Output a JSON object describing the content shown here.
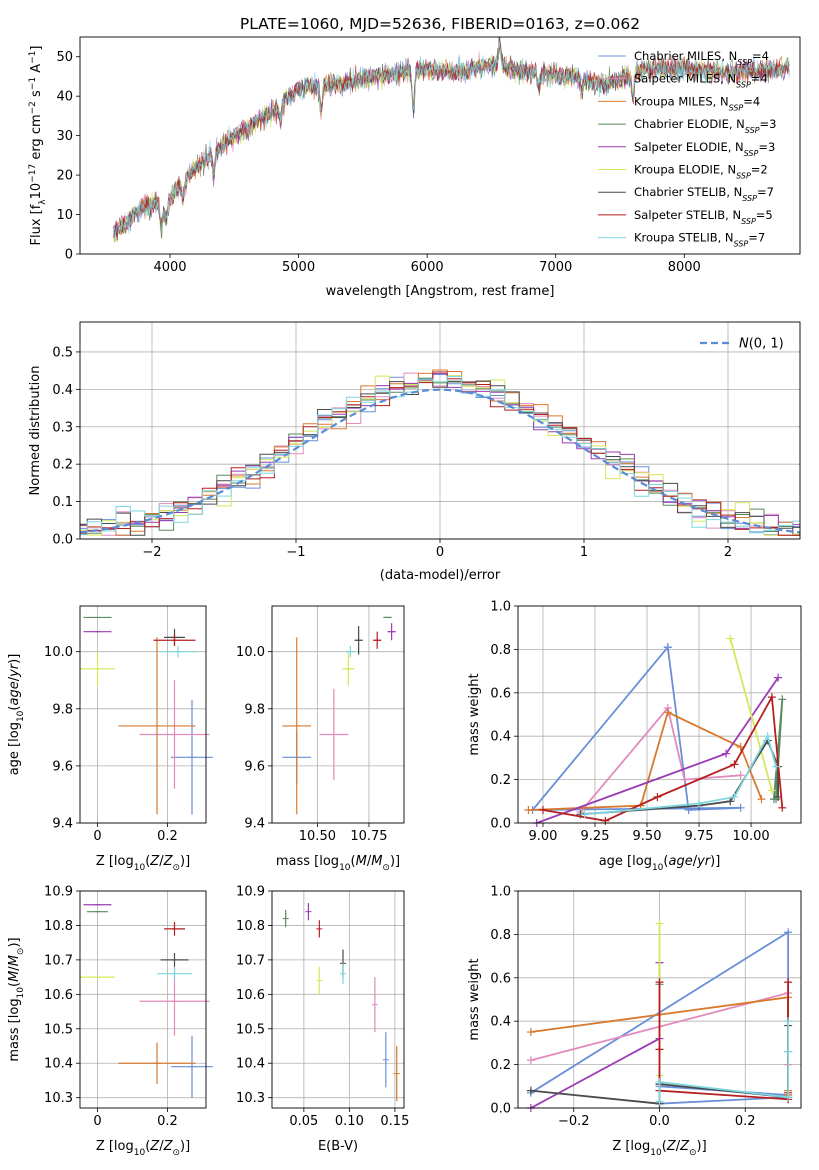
{
  "figure": {
    "title": "PLATE=1060, MJD=52636, FIBERID=0163, z=0.062"
  },
  "palette": {
    "series": [
      "#6a8fd8",
      "#e28bbd",
      "#d9792e",
      "#5a8a5e",
      "#9a3bb5",
      "#d4e85a",
      "#4a4a4a",
      "#b51f1f",
      "#7fd6e0"
    ]
  },
  "chart_data": [
    {
      "id": "spectrum",
      "type": "line",
      "xlabel": "wavelength [Angstrom, rest frame]",
      "ylabel": "Flux [f_λ10^-17 erg cm^-2 s^-1 A^-1]",
      "xlim": [
        3300,
        8900
      ],
      "ylim": [
        0,
        55
      ],
      "xticks": [
        4000,
        5000,
        6000,
        7000,
        8000
      ],
      "yticks": [
        0,
        10,
        20,
        30,
        40,
        50
      ],
      "grid": false,
      "legend": "top-right",
      "data_envelope": {
        "x": [
          3550,
          3800,
          4000,
          4200,
          4500,
          4800,
          5000,
          5300,
          5600,
          5900,
          6200,
          6500,
          6800,
          7100,
          7400,
          7700,
          8000,
          8300,
          8800
        ],
        "y": [
          5,
          12,
          14,
          22,
          30,
          36,
          42,
          43,
          45,
          47,
          46,
          48,
          46,
          45,
          43,
          47,
          47,
          46,
          47
        ]
      },
      "series": [
        {
          "name": "Chabrier MILES, N_SSP=4"
        },
        {
          "name": "Salpeter MILES, N_SSP=4"
        },
        {
          "name": "Kroupa MILES, N_SSP=4"
        },
        {
          "name": "Chabrier ELODIE, N_SSP=3"
        },
        {
          "name": "Salpeter ELODIE, N_SSP=3"
        },
        {
          "name": "Kroupa ELODIE, N_SSP=2"
        },
        {
          "name": "Chabrier STELIB, N_SSP=7"
        },
        {
          "name": "Salpeter STELIB, N_SSP=5"
        },
        {
          "name": "Kroupa STELIB, N_SSP=7"
        }
      ]
    },
    {
      "id": "residuals",
      "type": "histogram",
      "xlabel": "(data-model)/error",
      "ylabel": "Normed distribution",
      "xlim": [
        -2.5,
        2.5
      ],
      "ylim": [
        0,
        0.58
      ],
      "xticks": [
        -2,
        -1,
        0,
        1,
        2
      ],
      "yticks": [
        0.0,
        0.1,
        0.2,
        0.3,
        0.4,
        0.5
      ],
      "grid": true,
      "legend": "top-right",
      "reference": {
        "name": "N(0,1)",
        "mean": 0,
        "sigma": 1
      },
      "bin_width": 0.1
    },
    {
      "id": "age_vs_Z",
      "type": "errorbar",
      "xlabel": "Z [log10(Z/Z_sun)]",
      "ylabel": "age  [log10(age/yr)]",
      "xlim": [
        -0.05,
        0.31
      ],
      "ylim": [
        9.4,
        10.16
      ],
      "xticks": [
        0.0,
        0.2
      ],
      "yticks": [
        9.4,
        9.6,
        9.8,
        10.0
      ],
      "grid": true,
      "points": [
        {
          "series": 0,
          "x": 0.27,
          "y": 9.63,
          "xerr": 0.06,
          "yerr": 0.2
        },
        {
          "series": 1,
          "x": 0.22,
          "y": 9.71,
          "xerr": 0.1,
          "yerr": 0.19
        },
        {
          "series": 2,
          "x": 0.17,
          "y": 9.74,
          "xerr": 0.11,
          "yerr": 0.31
        },
        {
          "series": 3,
          "x": 0.0,
          "y": 10.12,
          "xerr": 0.04,
          "yerr": 0.0
        },
        {
          "series": 4,
          "x": 0.0,
          "y": 10.07,
          "xerr": 0.04,
          "yerr": 0.0
        },
        {
          "series": 5,
          "x": 0.0,
          "y": 9.94,
          "xerr": 0.05,
          "yerr": 0.06
        },
        {
          "series": 6,
          "x": 0.22,
          "y": 10.05,
          "xerr": 0.03,
          "yerr": 0.03
        },
        {
          "series": 7,
          "x": 0.22,
          "y": 10.04,
          "xerr": 0.06,
          "yerr": 0.02
        },
        {
          "series": 8,
          "x": 0.23,
          "y": 10.0,
          "xerr": 0.05,
          "yerr": 0.02
        }
      ]
    },
    {
      "id": "age_vs_mass",
      "type": "errorbar",
      "xlabel": "mass [log10(M/M_sun)]",
      "ylabel": "",
      "xlim": [
        10.28,
        10.92
      ],
      "ylim": [
        9.4,
        10.16
      ],
      "xticks": [
        10.5,
        10.75
      ],
      "xticklabels": [
        "10.50",
        "10.75"
      ],
      "yticks": [
        9.4,
        9.6,
        9.8,
        10.0
      ],
      "grid": true,
      "points": [
        {
          "series": 0,
          "x": 10.4,
          "y": 9.63,
          "xerr": 0.07,
          "yerr": 0.09
        },
        {
          "series": 1,
          "x": 10.58,
          "y": 9.71,
          "xerr": 0.07,
          "yerr": 0.16
        },
        {
          "series": 2,
          "x": 10.4,
          "y": 9.74,
          "xerr": 0.07,
          "yerr": 0.31
        },
        {
          "series": 3,
          "x": 10.84,
          "y": 10.12,
          "xerr": 0.02,
          "yerr": 0.0
        },
        {
          "series": 4,
          "x": 10.86,
          "y": 10.07,
          "xerr": 0.02,
          "yerr": 0.03
        },
        {
          "series": 5,
          "x": 10.65,
          "y": 9.94,
          "xerr": 0.03,
          "yerr": 0.06
        },
        {
          "series": 6,
          "x": 10.7,
          "y": 10.04,
          "xerr": 0.02,
          "yerr": 0.05
        },
        {
          "series": 7,
          "x": 10.79,
          "y": 10.04,
          "xerr": 0.02,
          "yerr": 0.03
        },
        {
          "series": 8,
          "x": 10.66,
          "y": 10.0,
          "xerr": 0.02,
          "yerr": 0.02
        }
      ]
    },
    {
      "id": "weight_vs_age",
      "type": "line",
      "xlabel": "age  [log10(age/yr)]",
      "ylabel": "mass weight",
      "xlim": [
        8.88,
        10.24
      ],
      "ylim": [
        0,
        1.0
      ],
      "xticks": [
        9.0,
        9.25,
        9.5,
        9.75,
        10.0
      ],
      "xticklabels": [
        "9.00",
        "9.25",
        "9.50",
        "9.75",
        "10.00"
      ],
      "yticks": [
        0.0,
        0.2,
        0.4,
        0.6,
        0.8,
        1.0
      ],
      "grid": true,
      "series": [
        {
          "x": [
            9.6,
            9.7,
            9.95,
            8.95,
            9.6
          ],
          "y": [
            0.81,
            0.06,
            0.07,
            0.06,
            0.81
          ]
        },
        {
          "x": [
            9.18,
            9.6,
            9.68,
            9.95
          ],
          "y": [
            0.05,
            0.53,
            0.2,
            0.22
          ]
        },
        {
          "x": [
            8.93,
            9.47,
            9.6,
            9.95,
            10.05
          ],
          "y": [
            0.06,
            0.08,
            0.51,
            0.35,
            0.11
          ]
        },
        {
          "x": [
            10.11,
            10.15,
            10.12
          ],
          "y": [
            0.11,
            0.57,
            0.11
          ]
        },
        {
          "x": [
            8.97,
            9.88,
            10.13
          ],
          "y": [
            0.0,
            0.32,
            0.67
          ]
        },
        {
          "x": [
            9.9,
            10.1
          ],
          "y": [
            0.85,
            0.15
          ]
        },
        {
          "x": [
            9.18,
            9.75,
            9.9,
            10.08,
            10.13,
            10.13
          ],
          "y": [
            0.04,
            0.08,
            0.1,
            0.38,
            0.26,
            0.12
          ]
        },
        {
          "x": [
            9.0,
            9.3,
            9.55,
            9.92,
            10.1,
            10.15
          ],
          "y": [
            0.06,
            0.01,
            0.12,
            0.27,
            0.58,
            0.07
          ]
        },
        {
          "x": [
            9.2,
            9.75,
            9.92,
            10.08,
            10.12
          ],
          "y": [
            0.04,
            0.09,
            0.12,
            0.4,
            0.26
          ]
        }
      ]
    },
    {
      "id": "mass_vs_Z",
      "type": "errorbar",
      "xlabel": "Z [log10(Z/Z_sun)]",
      "ylabel": "mass [log10(M/M_sun)]",
      "xlim": [
        -0.05,
        0.31
      ],
      "ylim": [
        10.27,
        10.9
      ],
      "xticks": [
        0.0,
        0.2
      ],
      "yticks": [
        10.3,
        10.4,
        10.5,
        10.6,
        10.7,
        10.8,
        10.9
      ],
      "grid": true,
      "points": [
        {
          "series": 0,
          "x": 0.27,
          "y": 10.39,
          "xerr": 0.06,
          "yerr": 0.09
        },
        {
          "series": 1,
          "x": 0.22,
          "y": 10.58,
          "xerr": 0.1,
          "yerr": 0.1
        },
        {
          "series": 2,
          "x": 0.17,
          "y": 10.4,
          "xerr": 0.11,
          "yerr": 0.06
        },
        {
          "series": 3,
          "x": 0.0,
          "y": 10.84,
          "xerr": 0.03,
          "yerr": 0.0
        },
        {
          "series": 4,
          "x": 0.0,
          "y": 10.86,
          "xerr": 0.04,
          "yerr": 0.0
        },
        {
          "series": 5,
          "x": 0.0,
          "y": 10.65,
          "xerr": 0.05,
          "yerr": 0.0
        },
        {
          "series": 6,
          "x": 0.22,
          "y": 10.7,
          "xerr": 0.04,
          "yerr": 0.02
        },
        {
          "series": 7,
          "x": 0.22,
          "y": 10.79,
          "xerr": 0.03,
          "yerr": 0.02
        },
        {
          "series": 8,
          "x": 0.22,
          "y": 10.66,
          "xerr": 0.05,
          "yerr": 0.02
        }
      ]
    },
    {
      "id": "mass_vs_EBV",
      "type": "errorbar",
      "xlabel": "E(B-V)",
      "ylabel": "",
      "xlim": [
        0.015,
        0.16
      ],
      "ylim": [
        10.27,
        10.9
      ],
      "xticks": [
        0.05,
        0.1,
        0.15
      ],
      "xticklabels": [
        "0.05",
        "0.10",
        "0.15"
      ],
      "yticks": [
        10.3,
        10.4,
        10.5,
        10.6,
        10.7,
        10.8,
        10.9
      ],
      "grid": true,
      "points": [
        {
          "series": 0,
          "x": 0.14,
          "y": 10.41,
          "xerr": 0,
          "yerr": 0.08
        },
        {
          "series": 1,
          "x": 0.128,
          "y": 10.57,
          "xerr": 0,
          "yerr": 0.08
        },
        {
          "series": 2,
          "x": 0.152,
          "y": 10.37,
          "xerr": 0,
          "yerr": 0.08
        },
        {
          "series": 3,
          "x": 0.03,
          "y": 10.82,
          "xerr": 0,
          "yerr": 0.025
        },
        {
          "series": 4,
          "x": 0.055,
          "y": 10.84,
          "xerr": 0,
          "yerr": 0.025
        },
        {
          "series": 5,
          "x": 0.067,
          "y": 10.64,
          "xerr": 0,
          "yerr": 0.04
        },
        {
          "series": 6,
          "x": 0.093,
          "y": 10.69,
          "xerr": 0,
          "yerr": 0.04
        },
        {
          "series": 7,
          "x": 0.067,
          "y": 10.79,
          "xerr": 0,
          "yerr": 0.025
        },
        {
          "series": 8,
          "x": 0.093,
          "y": 10.66,
          "xerr": 0,
          "yerr": 0.03
        }
      ]
    },
    {
      "id": "weight_vs_Z",
      "type": "line",
      "xlabel": "Z [log10(Z/Z_sun)]",
      "ylabel": "mass weight",
      "xlim": [
        -0.33,
        0.33
      ],
      "ylim": [
        0,
        1.0
      ],
      "xticks": [
        -0.2,
        0.0,
        0.2
      ],
      "xticklabels": [
        "−0.2",
        "0.0",
        "0.2"
      ],
      "yticks": [
        0.0,
        0.2,
        0.4,
        0.6,
        0.8,
        1.0
      ],
      "grid": true,
      "series": [
        {
          "x": [
            -0.3,
            0.3,
            0.3,
            0.0,
            0.0,
            0.3
          ],
          "y": [
            0.07,
            0.81,
            0.05,
            0.02,
            0.1,
            0.06
          ]
        },
        {
          "x": [
            -0.3,
            0.3,
            0.3
          ],
          "y": [
            0.22,
            0.53,
            0.2
          ]
        },
        {
          "x": [
            -0.3,
            0.3,
            0.3,
            0.3
          ],
          "y": [
            0.35,
            0.51,
            0.08,
            0.06
          ]
        },
        {
          "x": [
            0.0,
            0.0,
            0.0
          ],
          "y": [
            0.11,
            0.57,
            0.11
          ]
        },
        {
          "x": [
            -0.3,
            0.0,
            0.0
          ],
          "y": [
            0.0,
            0.32,
            0.67
          ]
        },
        {
          "x": [
            0.0,
            0.0
          ],
          "y": [
            0.85,
            0.15
          ]
        },
        {
          "x": [
            -0.3,
            0.0,
            0.0,
            0.3,
            0.3,
            0.3
          ],
          "y": [
            0.08,
            0.02,
            0.11,
            0.05,
            0.26,
            0.38
          ]
        },
        {
          "x": [
            0.0,
            0.0,
            0.0,
            0.3,
            0.3,
            0.3
          ],
          "y": [
            0.58,
            0.27,
            0.08,
            0.04,
            0.07,
            0.58
          ]
        },
        {
          "x": [
            0.0,
            0.0,
            0.3,
            0.3,
            0.3
          ],
          "y": [
            0.03,
            0.12,
            0.05,
            0.26,
            0.4
          ]
        }
      ]
    }
  ]
}
